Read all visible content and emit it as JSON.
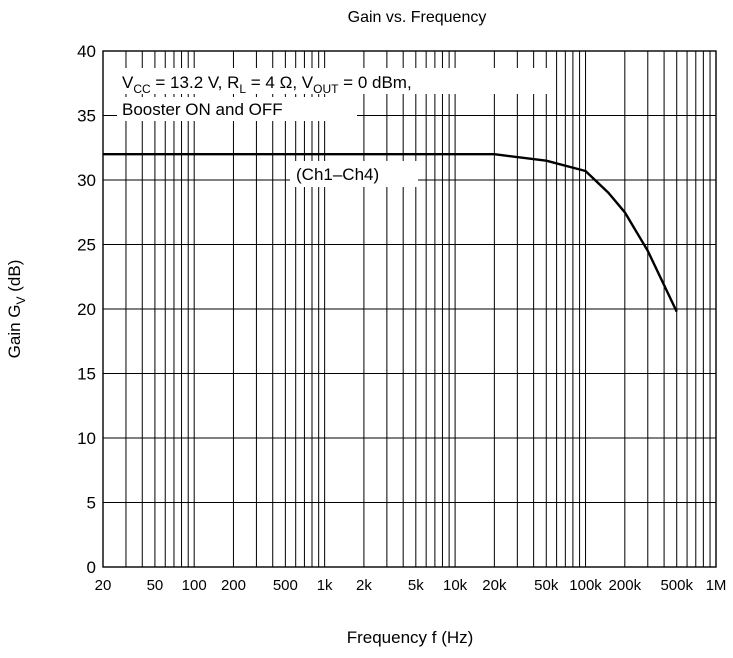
{
  "chart_data": {
    "type": "line",
    "title": "Gain vs. Frequency",
    "xlabel": "Frequency  f  (Hz)",
    "ylabel": {
      "main": "Gain  G",
      "sub": "V",
      "unit": "  (dB)"
    },
    "x_scale": "log",
    "xlim": [
      20,
      1000000
    ],
    "ylim": [
      0,
      40
    ],
    "grid": true,
    "x_ticks": [
      {
        "value": 20,
        "label": "20"
      },
      {
        "value": 50,
        "label": "50"
      },
      {
        "value": 100,
        "label": "100"
      },
      {
        "value": 200,
        "label": "200"
      },
      {
        "value": 500,
        "label": "500"
      },
      {
        "value": 1000,
        "label": "1k"
      },
      {
        "value": 2000,
        "label": "2k"
      },
      {
        "value": 5000,
        "label": "5k"
      },
      {
        "value": 10000,
        "label": "10k"
      },
      {
        "value": 20000,
        "label": "20k"
      },
      {
        "value": 50000,
        "label": "50k"
      },
      {
        "value": 100000,
        "label": "100k"
      },
      {
        "value": 200000,
        "label": "200k"
      },
      {
        "value": 500000,
        "label": "500k"
      },
      {
        "value": 1000000,
        "label": "1M"
      }
    ],
    "y_ticks": [
      0,
      5,
      10,
      15,
      20,
      25,
      30,
      35,
      40
    ],
    "series": [
      {
        "label": "(Ch1–Ch4)",
        "x": [
          20,
          1000,
          10000,
          20000,
          50000,
          100000,
          150000,
          200000,
          300000,
          500000
        ],
        "y": [
          32,
          32,
          32,
          32,
          31.5,
          30.7,
          29,
          27.5,
          24.5,
          19.8
        ]
      }
    ],
    "conditions": {
      "line1": [
        {
          "text": "V"
        },
        {
          "text": "CC",
          "sub": true
        },
        {
          "text": " = 13.2 V, R"
        },
        {
          "text": "L",
          "sub": true
        },
        {
          "text": " = 4 Ω, V"
        },
        {
          "text": "OUT",
          "sub": true
        },
        {
          "text": " = 0 dBm,"
        }
      ],
      "line2": "Booster ON and OFF"
    }
  }
}
